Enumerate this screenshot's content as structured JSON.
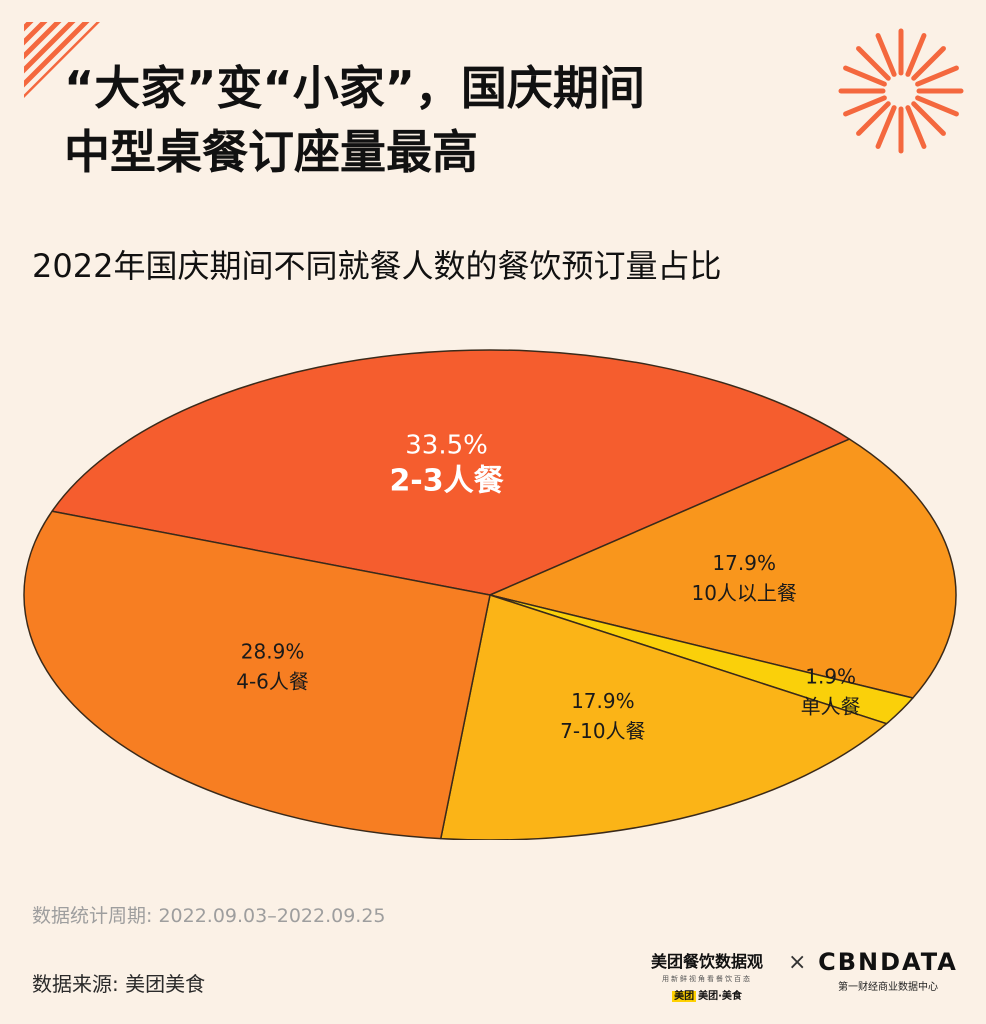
{
  "title_lines": [
    "“大家”变“小家”，国庆期间",
    "中型桌餐订座量最高"
  ],
  "chart_data": {
    "type": "pie",
    "title": "2022年国庆期间不同就餐人数的餐饮预订量占比",
    "unit": "%",
    "slices": [
      {
        "label": "2-3人餐",
        "value": 33.5,
        "value_label": "33.5%",
        "color": "#F55D2E"
      },
      {
        "label": "10人以上餐",
        "value": 17.9,
        "value_label": "17.9%",
        "color": "#F9961C"
      },
      {
        "label": "单人餐",
        "value": 1.9,
        "value_label": "1.9%",
        "color": "#FAD00A"
      },
      {
        "label": "7-10人餐",
        "value": 17.9,
        "value_label": "17.9%",
        "color": "#FBB417"
      },
      {
        "label": "4-6人餐",
        "value": 28.9,
        "value_label": "28.9%",
        "color": "#F77E22"
      }
    ]
  },
  "footer": {
    "period": "数据统计周期: 2022.09.03–2022.09.25",
    "source": "数据来源: 美团美食"
  },
  "logos": {
    "meituan_title": "美团餐饮数据观",
    "meituan_sub": "用新鲜视角看餐饮百态",
    "meituan_brand": "美团·美食",
    "meituan_badge": "美团",
    "times": "×",
    "cbn_title": "CBNDATA",
    "cbn_sub": "第一财经商业数据中心"
  },
  "colors": {
    "background": "#FBF1E6",
    "accent": "#F55D2E",
    "outline": "#3A2A1A"
  }
}
